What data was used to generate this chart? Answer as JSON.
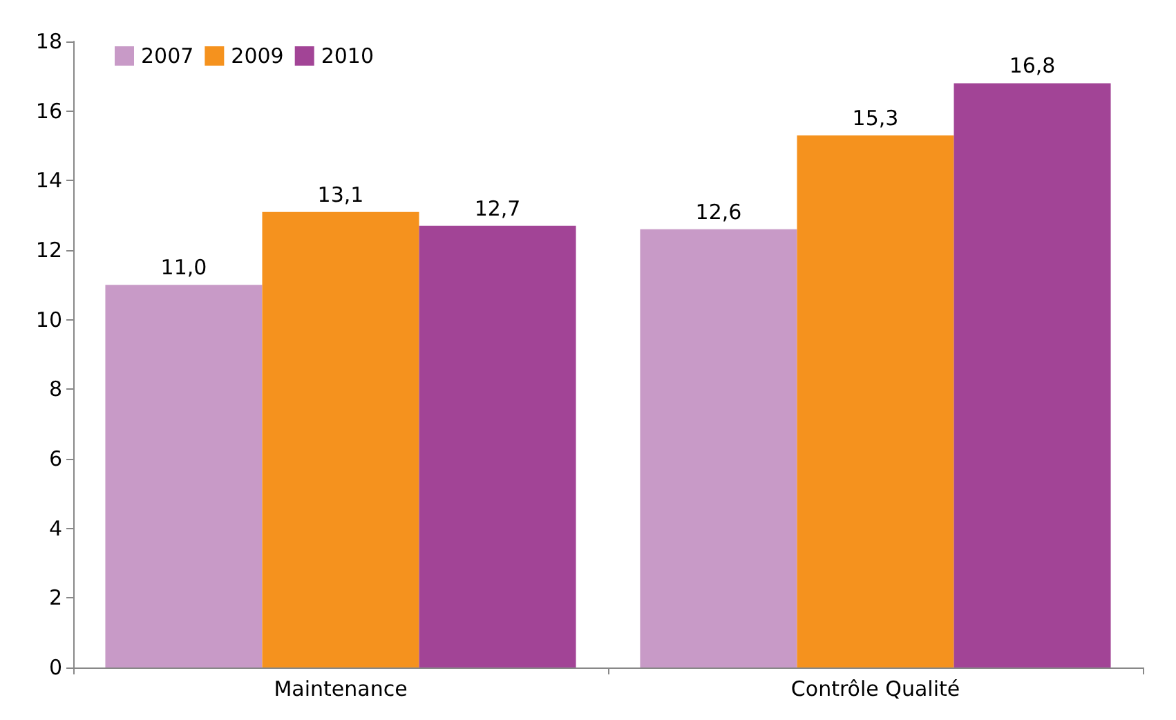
{
  "chart_data": {
    "type": "bar",
    "categories": [
      "Maintenance",
      "Contrôle Qualité"
    ],
    "series": [
      {
        "name": "2007",
        "color": "#c89ac7",
        "values": [
          11.0,
          12.6
        ],
        "value_labels": [
          "11,0",
          "12,6"
        ]
      },
      {
        "name": "2009",
        "color": "#f5921e",
        "values": [
          13.1,
          15.3
        ],
        "value_labels": [
          "13,1",
          "15,3"
        ]
      },
      {
        "name": "2010",
        "color": "#a24496",
        "values": [
          12.7,
          16.8
        ],
        "value_labels": [
          "12,7",
          "16,8"
        ]
      }
    ],
    "ylim": [
      0,
      18
    ],
    "yticks": [
      0,
      2,
      4,
      6,
      8,
      10,
      12,
      14,
      16,
      18
    ],
    "grid": false,
    "legend": "top left"
  }
}
